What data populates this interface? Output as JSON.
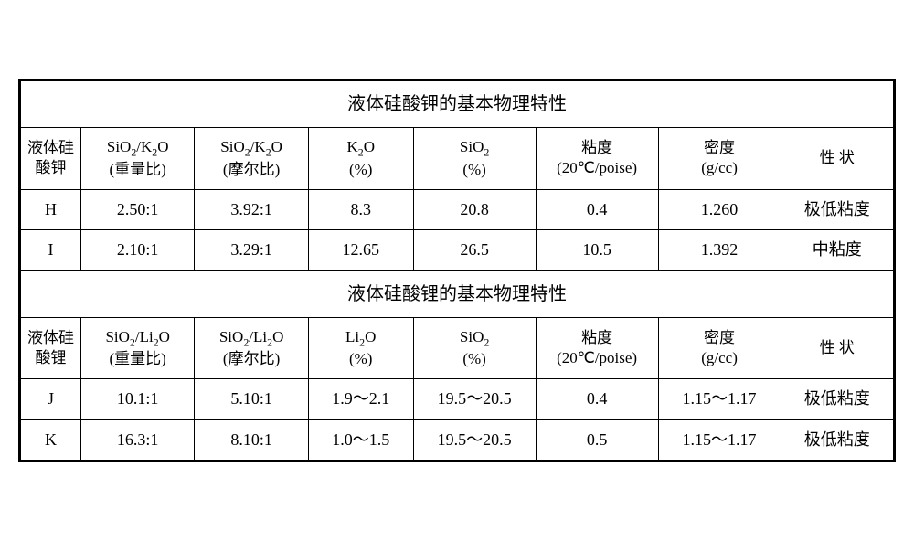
{
  "colors": {
    "border": "#000000",
    "background": "#ffffff",
    "text": "#000000"
  },
  "fontsize": {
    "title": 20,
    "header": 17,
    "cell": 18
  },
  "sectionA": {
    "title": "液体硅酸钾的基本物理特性",
    "headers": {
      "c0": "液体硅酸钾",
      "c1a": "SiO",
      "c1b": "/K",
      "c1c": "O",
      "c1d": "(重量比)",
      "c2a": "SiO",
      "c2b": "/K",
      "c2c": "O",
      "c2d": "(摩尔比)",
      "c3a": "K",
      "c3b": "O",
      "c3c": "(%)",
      "c4a": "SiO",
      "c4b": "(%)",
      "c5a": "粘度",
      "c5b": "(20℃/poise)",
      "c6a": "密度",
      "c6b": "(g/cc)",
      "c7": "性 状"
    },
    "rows": [
      {
        "c0": "H",
        "c1": "2.50:1",
        "c2": "3.92:1",
        "c3": "8.3",
        "c4": "20.8",
        "c5": "0.4",
        "c6": "1.260",
        "c7": "极低粘度"
      },
      {
        "c0": "I",
        "c1": "2.10:1",
        "c2": "3.29:1",
        "c3": "12.65",
        "c4": "26.5",
        "c5": "10.5",
        "c6": "1.392",
        "c7": "中粘度"
      }
    ]
  },
  "sectionB": {
    "title": "液体硅酸锂的基本物理特性",
    "headers": {
      "c0": "液体硅酸锂",
      "c1a": "SiO",
      "c1b": "/Li",
      "c1c": "O",
      "c1d": "(重量比)",
      "c2a": "SiO",
      "c2b": "/Li",
      "c2c": "O",
      "c2d": "(摩尔比)",
      "c3a": "Li",
      "c3b": "O",
      "c3c": "(%)",
      "c4a": "SiO",
      "c4b": "(%)",
      "c5a": "粘度",
      "c5b": "(20℃/poise)",
      "c6a": "密度",
      "c6b": "(g/cc)",
      "c7": "性 状"
    },
    "rows": [
      {
        "c0": "J",
        "c1": "10.1:1",
        "c2": "5.10:1",
        "c3": "1.9～2.1",
        "c4": "19.5～20.5",
        "c5": "0.4",
        "c6": "1.15～1.17",
        "c7": "极低粘度"
      },
      {
        "c0": "K",
        "c1": "16.3:1",
        "c2": "8.10:1",
        "c3": "1.0～1.5",
        "c4": "19.5～20.5",
        "c5": "0.5",
        "c6": "1.15～1.17",
        "c7": "极低粘度"
      }
    ]
  }
}
